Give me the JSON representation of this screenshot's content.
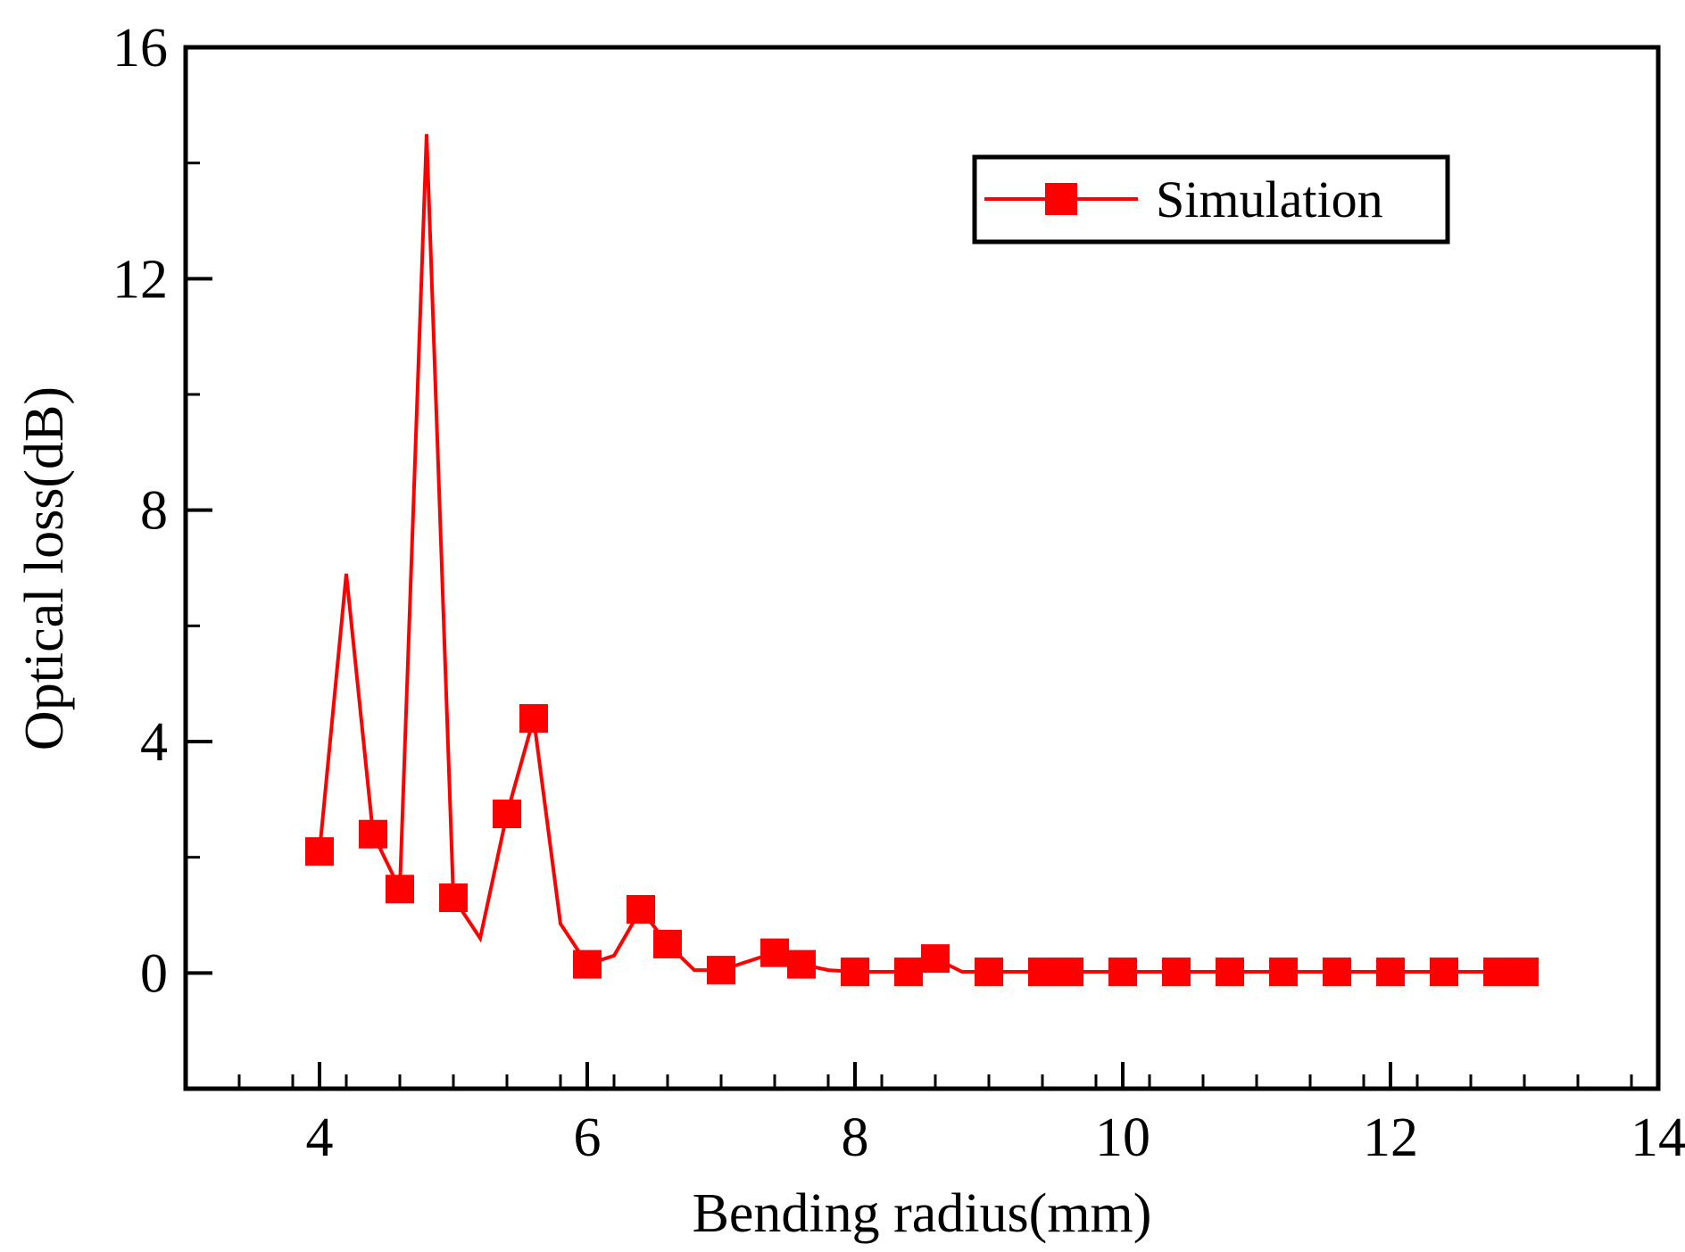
{
  "chart_data": {
    "type": "line",
    "title": "",
    "xlabel": "Bending radius(mm)",
    "ylabel": "Optical loss(dB)",
    "xlim": [
      3,
      14
    ],
    "ylim": [
      -2,
      16
    ],
    "xticks": [
      4,
      6,
      8,
      10,
      12,
      14
    ],
    "xtick_labels": [
      "4",
      "6",
      "8",
      "10",
      "12",
      "14"
    ],
    "yticks": [
      0,
      4,
      8,
      12,
      16
    ],
    "ytick_labels": [
      "0",
      "4",
      "8",
      "12",
      "16"
    ],
    "x_minor_step": 0.4,
    "y_minor_step": 2,
    "grid": false,
    "legend": {
      "position": "top-right",
      "entries": [
        "Simulation"
      ]
    },
    "series": [
      {
        "name": "Simulation",
        "color": "#ff0000",
        "marker": "square",
        "x": [
          4.0,
          4.2,
          4.4,
          4.6,
          4.8,
          5.0,
          5.2,
          5.4,
          5.6,
          5.8,
          6.0,
          6.2,
          6.4,
          6.6,
          6.8,
          7.0,
          7.2,
          7.4,
          7.6,
          7.8,
          8.0,
          8.2,
          8.4,
          8.6,
          8.8,
          9.0,
          9.2,
          9.4,
          9.6,
          9.8,
          10.0,
          10.2,
          10.4,
          10.6,
          10.8,
          11.0,
          11.2,
          11.4,
          11.6,
          11.8,
          12.0,
          12.2,
          12.4,
          12.6,
          12.8,
          13.0
        ],
        "y": [
          2.1,
          6.9,
          2.4,
          1.45,
          14.5,
          1.3,
          0.6,
          2.75,
          4.4,
          0.85,
          0.15,
          0.3,
          1.1,
          0.5,
          0.05,
          0.05,
          0.2,
          0.35,
          0.15,
          0.05,
          0.02,
          0.02,
          0.02,
          0.25,
          0.02,
          0.02,
          0.02,
          0.02,
          0.02,
          0.02,
          0.02,
          0.02,
          0.02,
          0.02,
          0.02,
          0.02,
          0.02,
          0.02,
          0.02,
          0.02,
          0.02,
          0.02,
          0.02,
          0.02,
          0.02,
          0.02
        ],
        "marked_x": [
          4.0,
          4.4,
          4.6,
          5.0,
          5.4,
          5.6,
          6.0,
          6.4,
          6.6,
          7.0,
          7.4,
          7.6,
          8.0,
          8.4,
          8.6,
          9.0,
          9.4,
          9.6,
          10.0,
          10.4,
          10.8,
          11.2,
          11.6,
          12.0,
          12.4,
          12.8,
          13.0
        ]
      }
    ]
  }
}
